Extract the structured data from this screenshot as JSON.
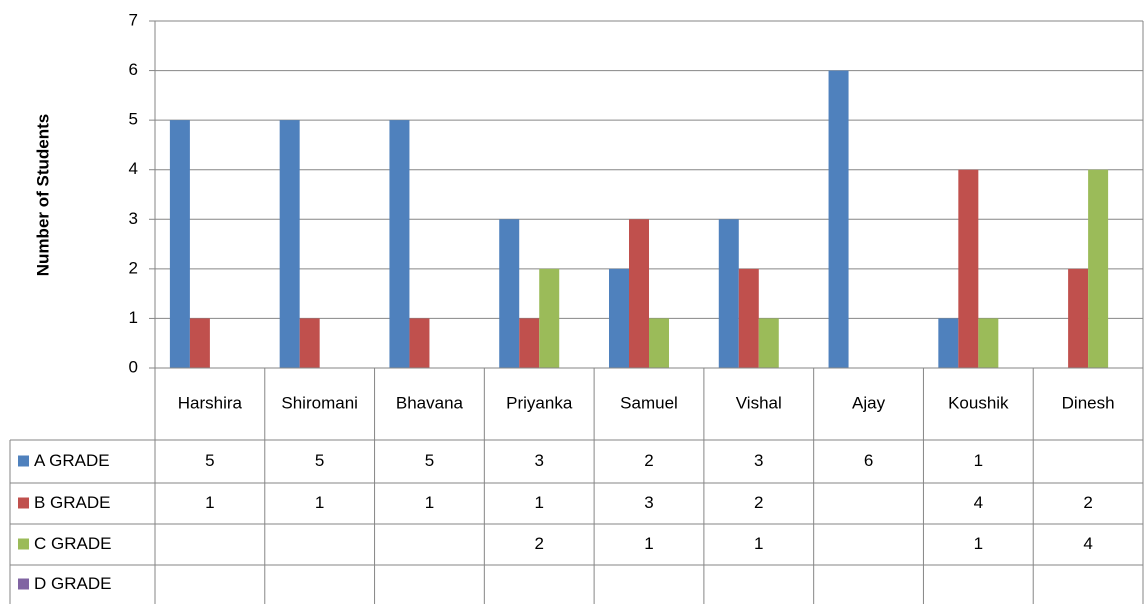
{
  "chart_data": {
    "type": "bar",
    "y_label": "Number of Students",
    "categories": [
      "Harshira",
      "Shiromani",
      "Bhavana",
      "Priyanka",
      "Samuel",
      "Vishal",
      "Ajay",
      "Koushik",
      "Dinesh"
    ],
    "series": [
      {
        "name": "A GRADE",
        "color": "#4f81bd",
        "values": [
          5,
          5,
          5,
          3,
          2,
          3,
          6,
          1,
          null
        ]
      },
      {
        "name": "B GRADE",
        "color": "#c0504d",
        "values": [
          1,
          1,
          1,
          1,
          3,
          2,
          null,
          4,
          2
        ]
      },
      {
        "name": "C GRADE",
        "color": "#9bbb59",
        "values": [
          null,
          null,
          null,
          2,
          1,
          1,
          null,
          1,
          4
        ]
      },
      {
        "name": "D GRADE",
        "color": "#8064a2",
        "values": [
          null,
          null,
          null,
          null,
          null,
          null,
          null,
          null,
          null
        ]
      }
    ],
    "ylim": [
      0,
      7
    ],
    "yticks": [
      0,
      1,
      2,
      3,
      4,
      5,
      6,
      7
    ],
    "grid": true,
    "data_table": true
  }
}
